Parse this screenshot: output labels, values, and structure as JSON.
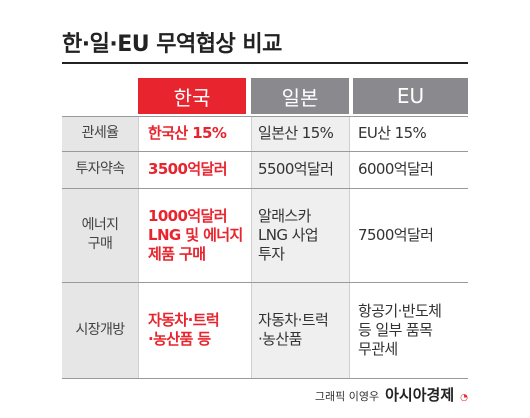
{
  "title": "한·일·EU 무역협상 비교",
  "headers": {
    "korea": "한국",
    "japan": "일본",
    "eu": "EU"
  },
  "rows": [
    {
      "label": "관세율",
      "korea": "한국산 15%",
      "japan": "일본산 15%",
      "eu": "EU산 15%"
    },
    {
      "label": "투자약속",
      "korea": "3500억달러",
      "japan": "5500억달러",
      "eu": "6000억달러"
    },
    {
      "label": "에너지\n구매",
      "korea": "1000억달러\nLNG 및 에너지\n제품 구매",
      "japan": "알래스카\nLNG 사업\n투자",
      "eu": "7500억달러"
    },
    {
      "label": "시장개방",
      "korea": "자동차·트럭\n·농산품 등",
      "japan": "자동차·트럭\n·농산품",
      "eu": "항공기·반도체\n등 일부 품목\n무관세"
    }
  ],
  "credit": {
    "byline": "그래픽 이영우",
    "brand": "아시아경제"
  },
  "colors": {
    "accent": "#e8242e",
    "header_gray": "#8a8a8e",
    "label_bg": "#e6e6e6",
    "japan_bg": "#efefef"
  }
}
